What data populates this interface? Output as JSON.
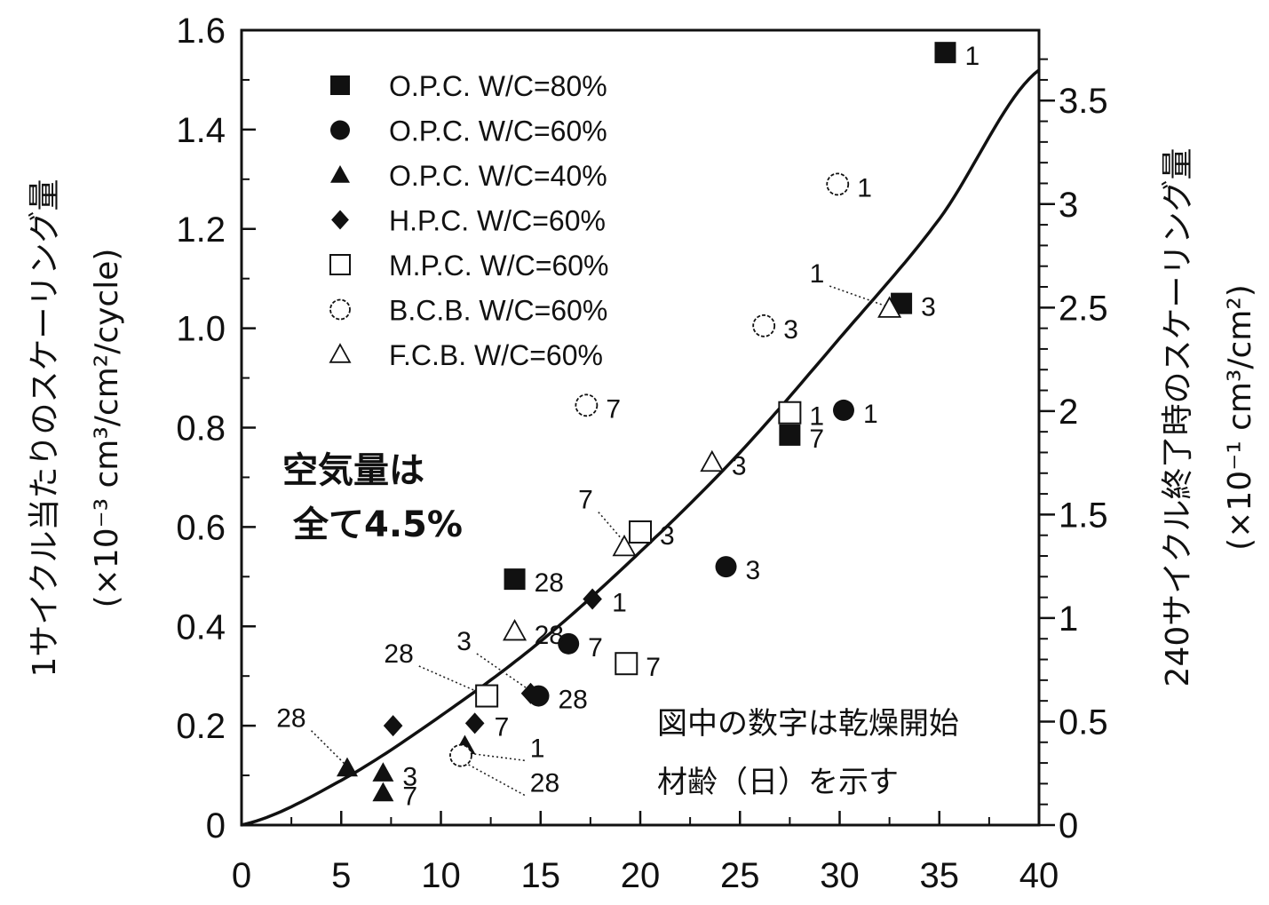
{
  "chart_data": {
    "type": "scatter",
    "xlabel": "",
    "ylabel": "1サイクル当たりのスケーリング量",
    "ylabel_unit": "(×10⁻³ cm³/cm²/cycle)",
    "y2label": "240サイクル終了時のスケーリング量",
    "y2label_unit": "(×10⁻¹ cm³/cm²)",
    "xlim": [
      0,
      40
    ],
    "ylim": [
      0,
      1.6
    ],
    "y2lim": [
      0,
      3.84
    ],
    "x_ticks": [
      "0",
      "5",
      "10",
      "15",
      "20",
      "25",
      "30",
      "35",
      "40"
    ],
    "y_ticks": [
      "0",
      "0.2",
      "0.4",
      "0.6",
      "0.8",
      "1.0",
      "1.2",
      "1.4",
      "1.6"
    ],
    "y2_ticks": [
      "0",
      "0.5",
      "1",
      "1.5",
      "2",
      "2.5",
      "3",
      "3.5"
    ],
    "grid": false,
    "legend_position": "top-left",
    "series": [
      {
        "name": "O.P.C. W/C=80%",
        "marker": "square-filled",
        "points": [
          {
            "x": 35.3,
            "y": 1.555,
            "label": "1"
          },
          {
            "x": 33.1,
            "y": 1.05,
            "label": "3"
          },
          {
            "x": 27.5,
            "y": 0.785,
            "label": "7"
          },
          {
            "x": 13.7,
            "y": 0.495,
            "label": "28"
          }
        ]
      },
      {
        "name": "O.P.C. W/C=60%",
        "marker": "circle-filled",
        "points": [
          {
            "x": 30.2,
            "y": 0.835,
            "label": "1"
          },
          {
            "x": 24.3,
            "y": 0.52,
            "label": "3"
          },
          {
            "x": 16.4,
            "y": 0.365,
            "label": "7"
          },
          {
            "x": 14.9,
            "y": 0.26,
            "label": "28"
          }
        ]
      },
      {
        "name": "O.P.C. W/C=40%",
        "marker": "triangle-filled",
        "points": [
          {
            "x": 11.2,
            "y": 0.16,
            "label": ""
          },
          {
            "x": 7.1,
            "y": 0.105,
            "label": "3"
          },
          {
            "x": 7.1,
            "y": 0.065,
            "label": "7"
          },
          {
            "x": 5.3,
            "y": 0.115,
            "label": ""
          }
        ]
      },
      {
        "name": "H.P.C. W/C=60%",
        "marker": "diamond-filled",
        "points": [
          {
            "x": 17.6,
            "y": 0.455,
            "label": "1"
          },
          {
            "x": 14.5,
            "y": 0.265,
            "label": ""
          },
          {
            "x": 11.7,
            "y": 0.205,
            "label": "7"
          },
          {
            "x": 7.6,
            "y": 0.2,
            "label": ""
          }
        ]
      },
      {
        "name": "M.P.C. W/C=60%",
        "marker": "square-open",
        "points": [
          {
            "x": 27.5,
            "y": 0.83,
            "label": "1"
          },
          {
            "x": 20.0,
            "y": 0.59,
            "label": "3"
          },
          {
            "x": 19.3,
            "y": 0.325,
            "label": "7"
          },
          {
            "x": 12.3,
            "y": 0.26,
            "label": ""
          }
        ]
      },
      {
        "name": "B.C.B. W/C=60%",
        "marker": "circle-open",
        "points": [
          {
            "x": 29.9,
            "y": 1.29,
            "label": "1"
          },
          {
            "x": 26.2,
            "y": 1.005,
            "label": "3"
          },
          {
            "x": 17.3,
            "y": 0.845,
            "label": "7"
          },
          {
            "x": 11.0,
            "y": 0.14,
            "label": ""
          }
        ]
      },
      {
        "name": "F.C.B. W/C=60%",
        "marker": "triangle-open",
        "points": [
          {
            "x": 32.5,
            "y": 1.04,
            "label": ""
          },
          {
            "x": 23.6,
            "y": 0.73,
            "label": "3"
          },
          {
            "x": 19.2,
            "y": 0.56,
            "label": ""
          },
          {
            "x": 13.7,
            "y": 0.39,
            "label": "28"
          }
        ]
      }
    ],
    "fit_curve": {
      "x": [
        0,
        5,
        10,
        15,
        20,
        25,
        30,
        35,
        40
      ],
      "y": [
        0,
        0.09,
        0.22,
        0.37,
        0.55,
        0.75,
        0.98,
        1.22,
        1.52
      ]
    },
    "callouts": [
      {
        "label": "1",
        "x_from": 29.5,
        "y_from": 1.085,
        "x_to": 32.3,
        "y_to": 1.045
      },
      {
        "label": "7",
        "x_from": 17.9,
        "y_from": 0.63,
        "x_to": 19.3,
        "y_to": 0.565
      },
      {
        "label": "28",
        "x_from": 8.9,
        "y_from": 0.32,
        "x_to": 12.2,
        "y_to": 0.262
      },
      {
        "label": "3",
        "x_from": 11.8,
        "y_from": 0.345,
        "x_to": 14.5,
        "y_to": 0.27
      },
      {
        "label": "28",
        "x_from": 3.5,
        "y_from": 0.19,
        "x_to": 5.3,
        "y_to": 0.118
      },
      {
        "label": "1",
        "x_from": 14.2,
        "y_from": 0.13,
        "x_to": 11.3,
        "y_to": 0.145
      },
      {
        "label": "28",
        "x_from": 14.2,
        "y_from": 0.06,
        "x_to": 11.0,
        "y_to": 0.13
      }
    ],
    "annotations": {
      "air": [
        "空気量は",
        "全て4.5%"
      ],
      "note": [
        "図中の数字は乾燥開始",
        "材齢（日）を示す"
      ]
    }
  }
}
